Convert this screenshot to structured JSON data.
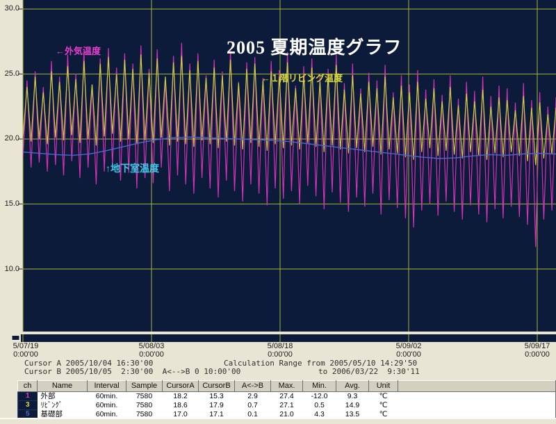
{
  "chart_data": {
    "type": "line",
    "title": "2005 夏期温度グラフ",
    "y_ticks": [
      "30.0",
      "25.0",
      "20.0",
      "15.0",
      "10.0"
    ],
    "y_tick_values": [
      30,
      25,
      20,
      15,
      10
    ],
    "x_ticks": [
      {
        "date": "5/07/19",
        "time": "0:00'00"
      },
      {
        "date": "5/08/03",
        "time": "0:00'00"
      },
      {
        "date": "5/08/18",
        "time": "0:00'00"
      },
      {
        "date": "5/09/02",
        "time": "0:00'00"
      },
      {
        "date": "5/09/17",
        "time": "0:00'00"
      }
    ],
    "plot_bg": "#0c1b3a",
    "grid_color": "#a5b43a",
    "annotations": {
      "outdoor": "←外気温度",
      "living": "←１階リビング温度",
      "basement": "↑地下室温度"
    },
    "series": [
      {
        "name": "外気温度",
        "color": "#d232b6",
        "values": [
          18.5,
          24.5,
          17.8,
          25.2,
          18.2,
          24.0,
          17.5,
          26.0,
          18.0,
          24.8,
          17.2,
          26.5,
          18.3,
          25.0,
          17.0,
          26.8,
          17.8,
          24.2,
          16.5,
          26.2,
          17.5,
          27.0,
          18.0,
          25.5,
          16.8,
          26.6,
          17.4,
          25.8,
          16.2,
          27.2,
          17.0,
          25.4,
          16.6,
          26.9,
          17.8,
          24.6,
          16.0,
          26.4,
          17.2,
          27.4,
          16.5,
          25.8,
          15.8,
          26.6,
          17.0,
          24.9,
          16.2,
          26.1,
          15.5,
          25.2,
          16.8,
          26.8,
          16.0,
          24.4,
          15.2,
          25.9,
          16.5,
          26.3,
          15.8,
          24.7,
          14.9,
          26.0,
          16.2,
          25.3,
          15.4,
          26.7,
          16.0,
          24.1,
          15.0,
          25.6,
          16.4,
          26.2,
          15.6,
          24.8,
          14.6,
          25.4,
          15.9,
          26.5,
          15.1,
          24.3,
          14.4,
          25.8,
          15.5,
          23.9,
          14.8,
          25.1,
          15.8,
          24.5,
          14.2,
          25.7,
          15.3,
          23.6,
          14.7,
          24.9,
          13.9,
          24.2,
          13.2,
          25.3,
          14.5,
          23.8,
          15.0,
          24.6,
          14.1,
          23.4,
          15.2,
          24.9,
          14.4,
          23.1,
          13.8,
          24.4,
          14.9,
          23.7,
          14.2,
          24.8,
          13.6,
          23.3,
          14.6,
          24.1,
          13.9,
          23.9,
          14.8,
          22.8,
          14.0,
          24.3,
          13.4,
          23.0,
          11.7,
          23.6,
          13.8,
          22.5,
          14.5,
          23.2
        ]
      },
      {
        "name": "１階リビング温度",
        "color": "#c9cf3e",
        "values": [
          20.2,
          24.0,
          19.8,
          24.8,
          20.0,
          23.6,
          19.6,
          25.2,
          20.1,
          24.4,
          19.9,
          25.6,
          20.3,
          24.6,
          19.7,
          26.0,
          20.0,
          24.2,
          19.5,
          25.8,
          20.2,
          26.3,
          20.4,
          25.0,
          19.8,
          26.1,
          20.0,
          25.4,
          19.6,
          26.5,
          19.9,
          25.1,
          19.7,
          26.2,
          20.1,
          24.8,
          19.5,
          25.9,
          19.8,
          26.4,
          19.6,
          25.3,
          19.4,
          26.0,
          19.9,
          24.7,
          19.6,
          25.5,
          19.3,
          24.9,
          19.8,
          26.1,
          19.5,
          24.3,
          19.2,
          25.4,
          19.7,
          25.8,
          19.4,
          24.5,
          19.1,
          25.2,
          19.6,
          24.8,
          19.3,
          25.9,
          19.5,
          23.9,
          19.2,
          24.9,
          19.7,
          25.5,
          19.4,
          24.4,
          19.0,
          24.8,
          19.5,
          25.7,
          19.2,
          23.8,
          18.9,
          24.9,
          19.3,
          23.5,
          19.0,
          24.4,
          19.4,
          23.9,
          18.8,
          24.8,
          19.2,
          23.2,
          18.9,
          24.1,
          18.6,
          23.6,
          18.4,
          24.4,
          19.0,
          23.1,
          19.3,
          23.9,
          18.7,
          22.9,
          19.1,
          24.0,
          18.8,
          22.6,
          18.5,
          23.5,
          19.0,
          22.9,
          18.7,
          23.8,
          18.4,
          22.5,
          18.9,
          23.2,
          18.6,
          23.0,
          19.0,
          22.2,
          18.7,
          23.3,
          18.3,
          22.4,
          18.0,
          22.8,
          18.5,
          21.9,
          18.8,
          22.4
        ]
      },
      {
        "name": "地下室温度",
        "color": "#4a68d0",
        "values": [
          19.0,
          18.9,
          18.8,
          18.75,
          18.85,
          19.1,
          19.4,
          19.7,
          19.95,
          20.1,
          20.15,
          20.1,
          20.05,
          20.0,
          19.95,
          19.9,
          19.8,
          19.65,
          19.5,
          19.35,
          19.2,
          19.05,
          18.9,
          18.75,
          18.6,
          18.5,
          18.55,
          18.7,
          18.8,
          18.75,
          18.85,
          18.9,
          18.85
        ]
      }
    ]
  },
  "info": {
    "cursor_a": "Cursor A 2005/10/04 16:30'00",
    "cursor_b": "Cursor B 2005/10/05  2:30'00  A<-->B 0 10:00'00",
    "calc_range_from": "Calculation Range from 2005/05/10 14:29'50",
    "calc_range_to": "to 2006/03/22  9:30'11"
  },
  "table": {
    "headers": [
      "ch",
      "Name",
      "Interval",
      "Sample",
      "CursorA",
      "CursorB",
      "A<->B",
      "Max.",
      "Min.",
      "Avg.",
      "Unit"
    ],
    "rows": [
      {
        "ch": "1",
        "ch_color": "#e040c4",
        "name": "外部",
        "interval": "60min.",
        "sample": "7580",
        "cursor_a": "18.2",
        "cursor_b": "15.3",
        "a_b": "2.9",
        "max": "27.4",
        "min": "-12.0",
        "avg": "9.3",
        "unit": "℃"
      },
      {
        "ch": "3",
        "ch_color": "#d8d83c",
        "name": "ﾘﾋﾞﾝｸﾞ",
        "interval": "60min.",
        "sample": "7580",
        "cursor_a": "18.6",
        "cursor_b": "17.9",
        "a_b": "0.7",
        "max": "27.1",
        "min": "0.5",
        "avg": "14.9",
        "unit": "℃"
      },
      {
        "ch": "5",
        "ch_color": "#4a68d0",
        "name": "基礎部",
        "interval": "60min.",
        "sample": "7580",
        "cursor_a": "17.0",
        "cursor_b": "17.1",
        "a_b": "0.1",
        "max": "21.0",
        "min": "4.3",
        "avg": "13.5",
        "unit": "℃"
      }
    ]
  }
}
